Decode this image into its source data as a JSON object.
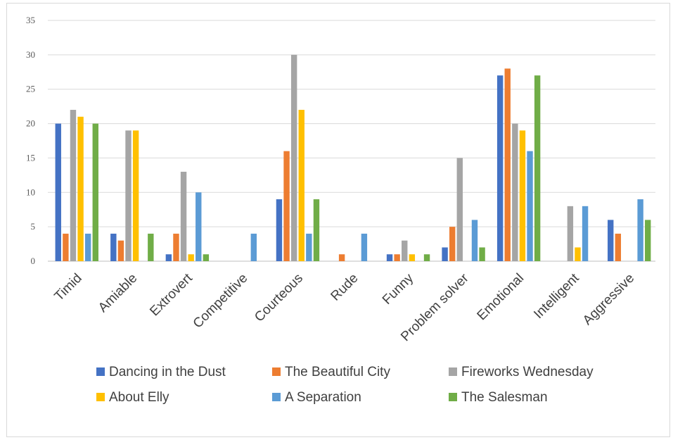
{
  "chart_data": {
    "type": "bar",
    "categories": [
      "Timid",
      "Amiable",
      "Extrovert",
      "Competitive",
      "Courteous",
      "Rude",
      "Funny",
      "Problem solver",
      "Emotional",
      "Intelligent",
      "Aggressive"
    ],
    "series": [
      {
        "name": "Dancing in the Dust",
        "color": "#4472C4",
        "values": [
          20,
          4,
          1,
          0,
          9,
          0,
          1,
          2,
          27,
          0,
          6
        ]
      },
      {
        "name": "The Beautiful City",
        "color": "#ED7D31",
        "values": [
          4,
          3,
          4,
          0,
          16,
          1,
          1,
          5,
          28,
          0,
          4
        ]
      },
      {
        "name": "Fireworks Wednesday",
        "color": "#A5A5A5",
        "values": [
          22,
          19,
          13,
          0,
          30,
          0,
          3,
          15,
          20,
          8,
          0
        ]
      },
      {
        "name": "About Elly",
        "color": "#FFC000",
        "values": [
          21,
          19,
          1,
          0,
          22,
          0,
          1,
          0,
          19,
          2,
          0
        ]
      },
      {
        "name": "A Separation",
        "color": "#5B9BD5",
        "values": [
          4,
          0,
          10,
          4,
          4,
          4,
          0,
          6,
          16,
          8,
          9
        ]
      },
      {
        "name": "The Salesman",
        "color": "#70AD47",
        "values": [
          20,
          4,
          1,
          0,
          9,
          0,
          1,
          2,
          27,
          0,
          6
        ]
      }
    ],
    "yticks": [
      "0",
      "5",
      "10",
      "15",
      "20",
      "25",
      "30",
      "35"
    ],
    "ylim": [
      0,
      35
    ],
    "grid": true,
    "legend_position": "bottom",
    "title": "",
    "xlabel": "",
    "ylabel": ""
  }
}
